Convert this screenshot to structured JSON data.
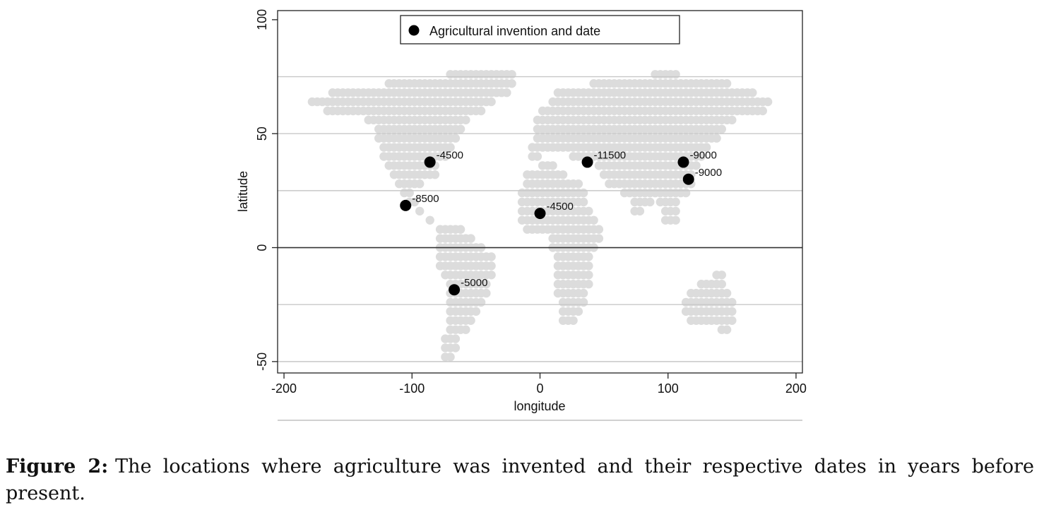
{
  "chart_data": {
    "type": "scatter",
    "title": "",
    "xlabel": "longitude",
    "ylabel": "latitude",
    "xlim": [
      -205,
      205
    ],
    "ylim": [
      -55,
      104
    ],
    "xticks": [
      -200,
      -100,
      0,
      100,
      200
    ],
    "yticks": [
      -50,
      0,
      50,
      100
    ],
    "xtick_labels": [
      "-200",
      "-100",
      "0",
      "100",
      "200"
    ],
    "ytick_labels": [
      "-50",
      "0",
      "50",
      "100"
    ],
    "hlines": [
      75,
      50,
      25,
      0,
      -25,
      -50
    ],
    "legend": {
      "position": "top-center",
      "entries": [
        "Agricultural invention and date"
      ]
    },
    "series": [
      {
        "name": "Agricultural invention and date",
        "points": [
          {
            "x": -86,
            "y": 37.5,
            "label": "-4500"
          },
          {
            "x": -105,
            "y": 18.5,
            "label": "-8500"
          },
          {
            "x": -67,
            "y": -18.5,
            "label": "-5000"
          },
          {
            "x": 0,
            "y": 15,
            "label": "-4500"
          },
          {
            "x": 37,
            "y": 37.5,
            "label": "-11500"
          },
          {
            "x": 112,
            "y": 37.5,
            "label": "-9000"
          },
          {
            "x": 116,
            "y": 30,
            "label": "-9000"
          }
        ],
        "color": "#000000"
      }
    ],
    "background_map_color": "#dcdcdc",
    "gridline_color": "#c8c8c8"
  },
  "caption": {
    "label": "Figure 2:",
    "text": "The locations where agriculture was invented and their respective dates in years before present."
  }
}
